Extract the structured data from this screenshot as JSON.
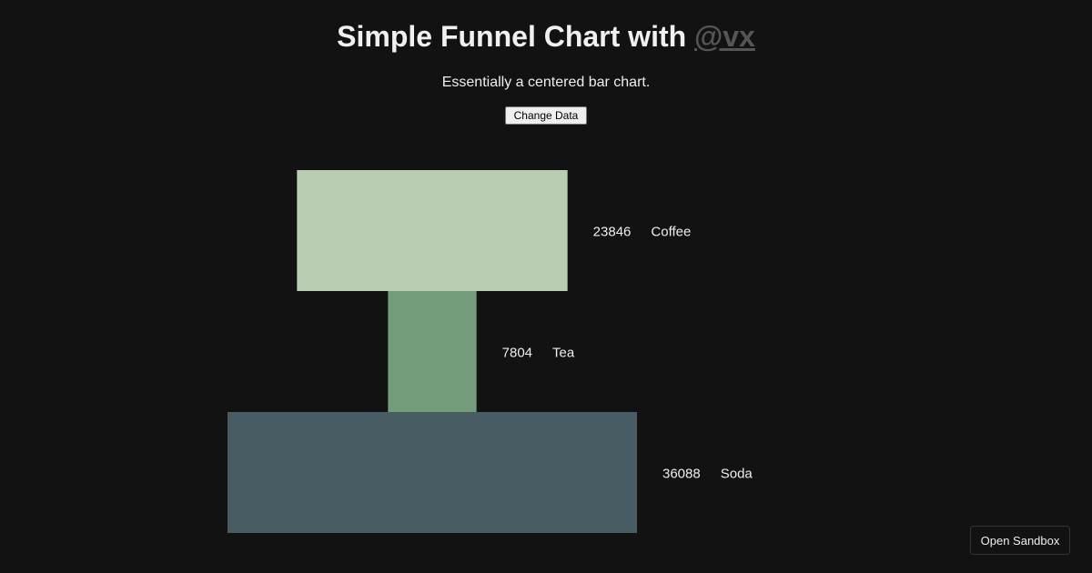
{
  "header": {
    "title": "Simple Funnel Chart with ",
    "link": "@vx",
    "subtitle": "Essentially a centered bar chart.",
    "button": "Change Data"
  },
  "footer": {
    "sandbox": "Open Sandbox"
  },
  "chart_data": {
    "type": "bar",
    "orientation": "horizontal-centered-funnel",
    "categories": [
      "Coffee",
      "Tea",
      "Soda"
    ],
    "values": [
      23846,
      7804,
      36088
    ],
    "colors": [
      "#b9cdb3",
      "#739c7a",
      "#485c63"
    ],
    "labels": [
      "23846",
      "7804",
      "36088"
    ]
  }
}
